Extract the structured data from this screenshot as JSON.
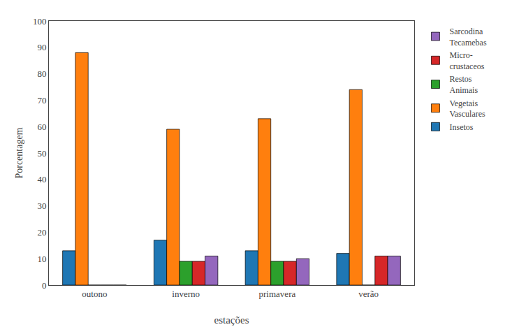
{
  "chart_data": {
    "type": "bar",
    "categories": [
      "outono",
      "inverno",
      "primavera",
      "verão"
    ],
    "series": [
      {
        "name": "Insetos",
        "values": [
          13,
          17,
          13,
          12
        ]
      },
      {
        "name": "Vegetais\nVasculares",
        "values": [
          88,
          59,
          63,
          74
        ]
      },
      {
        "name": "Restos\nAnimais",
        "values": [
          0,
          9,
          9,
          0
        ]
      },
      {
        "name": "Micro-\ncrustaceos",
        "values": [
          0,
          9,
          9,
          11
        ]
      },
      {
        "name": "Sarcodina\nTecamebas",
        "values": [
          0,
          11,
          10,
          11
        ]
      }
    ],
    "xlabel": "estações",
    "ylabel": "Porcentagem",
    "ylim": [
      0,
      100
    ],
    "yticks": [
      0,
      10,
      20,
      30,
      40,
      50,
      60,
      70,
      80,
      90,
      100
    ],
    "grid": false,
    "legend": "right"
  }
}
